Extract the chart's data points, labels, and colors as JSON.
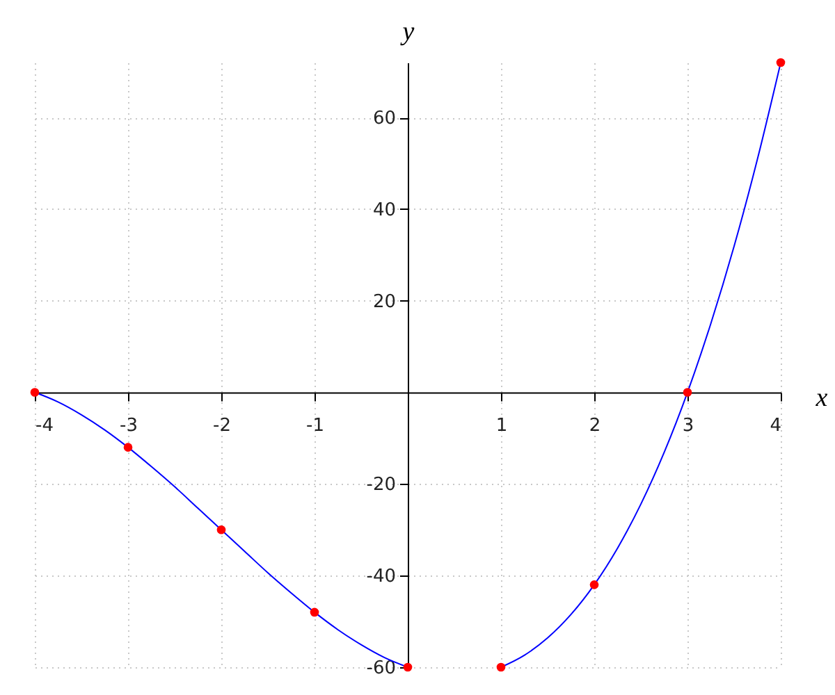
{
  "chart_data": {
    "type": "line",
    "xlabel": "x",
    "ylabel": "y",
    "xlim": [
      -4,
      4
    ],
    "ylim": [
      -60,
      72
    ],
    "xticks": [
      -4,
      -3,
      -2,
      -1,
      1,
      2,
      3,
      4
    ],
    "yticks": [
      -60,
      -40,
      -20,
      20,
      40,
      60
    ],
    "grid": true,
    "series": [
      {
        "color": "#0000ff",
        "marker": "none",
        "x": [
          -4,
          -3.75,
          -3.5,
          -3.25,
          -3,
          -2.75,
          -2.5,
          -2.25,
          -2,
          -1.75,
          -1.5,
          -1.25,
          -1,
          -0.75,
          -0.5,
          -0.25,
          0,
          0.25,
          0.5,
          0.75,
          1,
          1.25,
          1.5,
          1.75,
          2,
          2.25,
          2.5,
          2.75,
          3,
          3.25,
          3.5,
          3.75,
          4
        ],
        "values": [
          0,
          -2.1,
          -4.9,
          -8.2,
          -12,
          -16.2,
          -20.6,
          -25.3,
          -30,
          -34.7,
          -39.4,
          -43.8,
          -48,
          -51.8,
          -55.1,
          -57.9,
          -60,
          null,
          null,
          null,
          -60,
          -57.4,
          -53.6,
          -48.5,
          -42,
          -34.0,
          -24.4,
          -13.1,
          0,
          15.0,
          31.9,
          50.9,
          72
        ]
      },
      {
        "type": "scatter",
        "color": "#ff0000",
        "marker": "circle",
        "x": [
          -4,
          -3,
          -2,
          -1,
          0,
          1,
          2,
          3,
          4
        ],
        "values": [
          0,
          -12,
          -30,
          -48,
          -60,
          -60,
          -42,
          0,
          72
        ]
      }
    ]
  }
}
